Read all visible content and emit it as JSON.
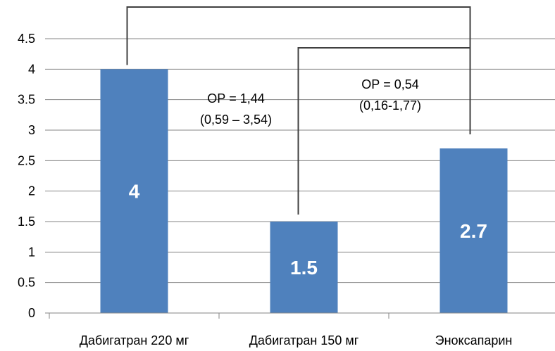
{
  "chart_data": {
    "type": "bar",
    "categories": [
      "Дабигатран 220 мг",
      "Дабигатран 150 мг",
      "Эноксапарин"
    ],
    "values": [
      4,
      1.5,
      2.7
    ],
    "data_labels": [
      "4",
      "1.5",
      "2.7"
    ],
    "ylim": [
      0,
      4.5
    ],
    "yticks": [
      0,
      0.5,
      1,
      1.5,
      2,
      2.5,
      3,
      3.5,
      4,
      4.5
    ],
    "ytick_labels": [
      "0",
      "0.5",
      "1",
      "1.5",
      "2",
      "2.5",
      "3",
      "3.5",
      "4",
      "4.5"
    ],
    "grid": true,
    "bar_color": "#4F81BD",
    "grid_color": "#868686",
    "annotations": [
      {
        "lines": [
          "ОР = 1,44",
          "(0,59 – 3,54)"
        ]
      },
      {
        "lines": [
          "ОР = 0,54",
          "(0,16-1,77)"
        ]
      }
    ],
    "brackets": [
      {
        "from_category": 0,
        "to_category": 2
      },
      {
        "from_category": 1,
        "to_category": 2
      }
    ]
  }
}
